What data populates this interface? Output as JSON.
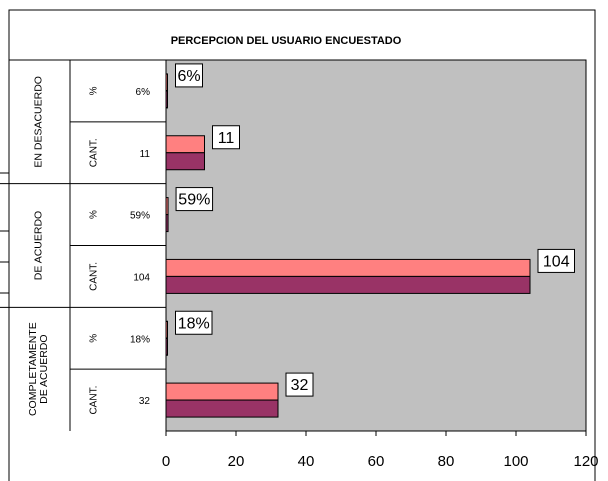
{
  "chart_data": {
    "type": "bar",
    "orientation": "horizontal",
    "title": "PERCEPCION DEL USUARIO ENCUESTADO",
    "groups": [
      {
        "label_lines": [
          "EN DESACUERDO"
        ]
      },
      {
        "label_lines": [
          "DE ACUERDO"
        ]
      },
      {
        "label_lines": [
          "COMPLETAMENTE",
          "DE ACUERDO"
        ]
      }
    ],
    "rows": [
      {
        "group": 0,
        "sub": "%",
        "value_text": "6%",
        "value": 0.06,
        "data_label": "6%"
      },
      {
        "group": 0,
        "sub": "CANT.",
        "value_text": "11",
        "value": 11,
        "data_label": "11"
      },
      {
        "group": 1,
        "sub": "%",
        "value_text": "59%",
        "value": 0.59,
        "data_label": "59%"
      },
      {
        "group": 1,
        "sub": "CANT.",
        "value_text": "104",
        "value": 104,
        "data_label": "104"
      },
      {
        "group": 2,
        "sub": "%",
        "value_text": "18%",
        "value": 0.18,
        "data_label": "18%"
      },
      {
        "group": 2,
        "sub": "CANT.",
        "value_text": "32",
        "value": 32,
        "data_label": "32"
      }
    ],
    "series": [
      {
        "color": "#FF8080"
      },
      {
        "color": "#993366"
      }
    ],
    "xlim": [
      0,
      120
    ],
    "xticks": [
      "0",
      "20",
      "40",
      "60",
      "80",
      "100",
      "120"
    ],
    "plot_background": "#C0C0C0",
    "legend": "none"
  }
}
